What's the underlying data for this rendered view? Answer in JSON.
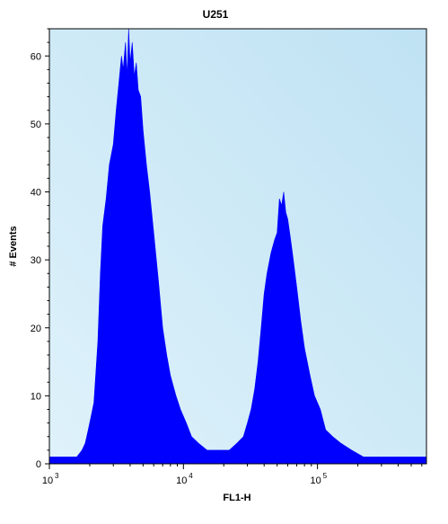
{
  "chart_data": {
    "type": "area",
    "title": "U251",
    "xlabel": "FL1-H",
    "ylabel": "# Events",
    "x_scale": "log",
    "xlim": [
      1000,
      650000
    ],
    "ylim": [
      0,
      64
    ],
    "y_ticks": [
      0,
      10,
      20,
      30,
      40,
      50,
      60
    ],
    "x_ticks": [
      {
        "value": 1000,
        "base": "10",
        "exp": "3"
      },
      {
        "value": 10000,
        "base": "10",
        "exp": "4"
      },
      {
        "value": 100000,
        "base": "10",
        "exp": "5"
      }
    ],
    "grid": false,
    "series": [
      {
        "color": "#0000ff",
        "points": [
          [
            1000,
            1
          ],
          [
            1300,
            1
          ],
          [
            1600,
            1
          ],
          [
            1750,
            2
          ],
          [
            1850,
            3
          ],
          [
            1950,
            5
          ],
          [
            2050,
            7
          ],
          [
            2150,
            9
          ],
          [
            2300,
            18
          ],
          [
            2400,
            28
          ],
          [
            2500,
            35
          ],
          [
            2650,
            39
          ],
          [
            2800,
            44
          ],
          [
            3000,
            47
          ],
          [
            3150,
            52
          ],
          [
            3300,
            56
          ],
          [
            3450,
            60
          ],
          [
            3550,
            58
          ],
          [
            3700,
            62
          ],
          [
            3800,
            57
          ],
          [
            3900,
            64
          ],
          [
            4000,
            59
          ],
          [
            4150,
            62
          ],
          [
            4300,
            57
          ],
          [
            4450,
            59
          ],
          [
            4600,
            55
          ],
          [
            4800,
            54
          ],
          [
            5000,
            49
          ],
          [
            5300,
            44
          ],
          [
            5600,
            40
          ],
          [
            6000,
            34
          ],
          [
            6500,
            27
          ],
          [
            7000,
            20
          ],
          [
            7500,
            16
          ],
          [
            8000,
            13
          ],
          [
            8800,
            10
          ],
          [
            9500,
            8
          ],
          [
            10500,
            6
          ],
          [
            11500,
            4
          ],
          [
            13000,
            3
          ],
          [
            15000,
            2
          ],
          [
            18000,
            2
          ],
          [
            22000,
            2
          ],
          [
            25000,
            3
          ],
          [
            28000,
            4
          ],
          [
            30000,
            6
          ],
          [
            32000,
            8
          ],
          [
            34000,
            11
          ],
          [
            36000,
            15
          ],
          [
            38000,
            20
          ],
          [
            40000,
            25
          ],
          [
            42000,
            28
          ],
          [
            45000,
            31
          ],
          [
            48000,
            33
          ],
          [
            50000,
            34
          ],
          [
            52000,
            39
          ],
          [
            54000,
            38
          ],
          [
            56000,
            40
          ],
          [
            58000,
            37
          ],
          [
            60000,
            36
          ],
          [
            63000,
            33
          ],
          [
            66000,
            30
          ],
          [
            70000,
            26
          ],
          [
            75000,
            21
          ],
          [
            80000,
            17
          ],
          [
            88000,
            13
          ],
          [
            95000,
            10
          ],
          [
            105000,
            8
          ],
          [
            115000,
            5
          ],
          [
            130000,
            4
          ],
          [
            150000,
            3
          ],
          [
            180000,
            2
          ],
          [
            220000,
            1
          ],
          [
            300000,
            1
          ],
          [
            450000,
            1
          ],
          [
            650000,
            1
          ]
        ]
      }
    ]
  }
}
